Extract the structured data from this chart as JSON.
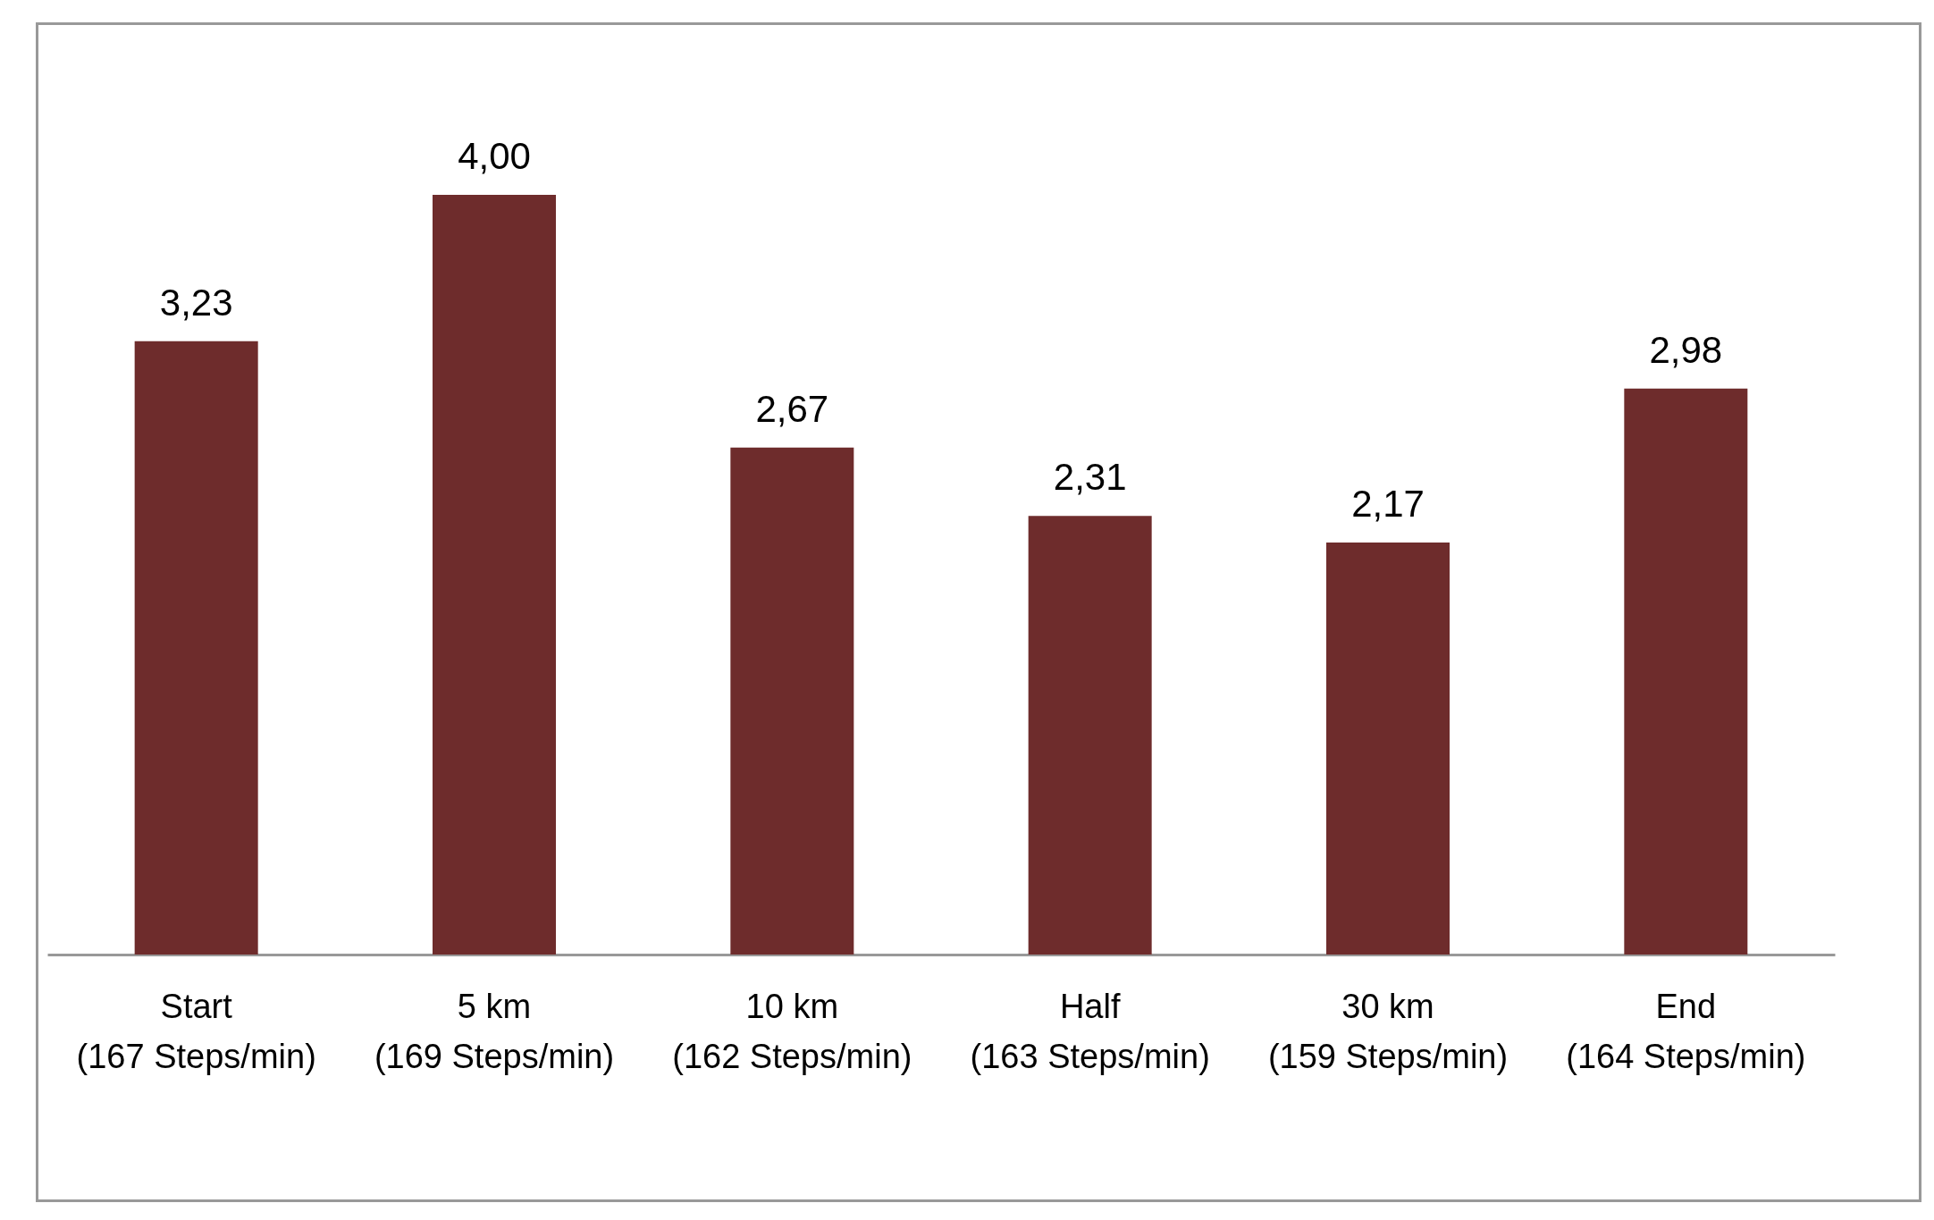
{
  "chart_data": {
    "type": "bar",
    "categories": [
      "Start\n(167 Steps/min)",
      "5 km\n(169 Steps/min)",
      "10 km\n(162 Steps/min)",
      "Half\n(163 Steps/min)",
      "30 km\n(159 Steps/min)",
      "End\n(164 Steps/min)"
    ],
    "values": [
      3.23,
      4.0,
      2.67,
      2.31,
      2.17,
      2.98
    ],
    "value_labels": [
      "3,23",
      "4,00",
      "2,67",
      "2,31",
      "2,17",
      "2,98"
    ],
    "color": "#6e2c2c",
    "grid": false
  }
}
